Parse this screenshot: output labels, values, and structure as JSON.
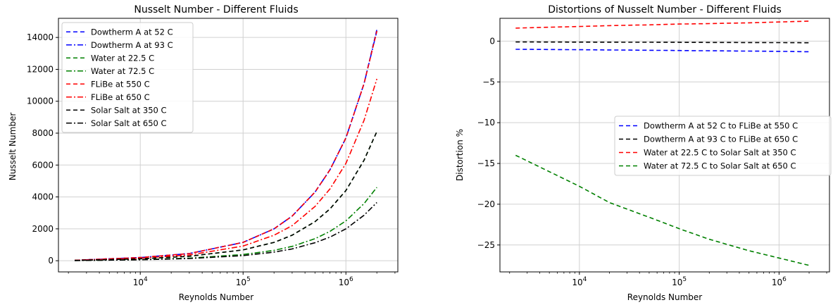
{
  "chart_data": [
    {
      "type": "line",
      "title": "Nusselt Number - Different Fluids",
      "xlabel": "Reynolds Number",
      "ylabel": "Nusselt Number",
      "xscale": "log",
      "xlim": [
        1600,
        3200000
      ],
      "ylim": [
        -700,
        15200
      ],
      "x_ticks": [
        {
          "value": 10000,
          "base": "10",
          "exp": "4"
        },
        {
          "value": 100000,
          "base": "10",
          "exp": "5"
        },
        {
          "value": 1000000,
          "base": "10",
          "exp": "6"
        }
      ],
      "y_ticks": [
        "0",
        "2000",
        "4000",
        "6000",
        "8000",
        "10000",
        "12000",
        "14000"
      ],
      "y_tick_values": [
        0,
        2000,
        4000,
        6000,
        8000,
        10000,
        12000,
        14000
      ],
      "grid": true,
      "legend_position": "upper-left",
      "x": [
        2300,
        10000,
        30000,
        100000,
        200000,
        300000,
        500000,
        700000,
        1000000,
        1500000,
        2000000
      ],
      "series": [
        {
          "name": "Dowtherm A at 52 C",
          "color": "#0000ff",
          "style": "dashed",
          "values": [
            30,
            200,
            450,
            1150,
            2000,
            2800,
            4300,
            5700,
            7700,
            11100,
            14500
          ]
        },
        {
          "name": "Dowtherm A at 93 C",
          "color": "#0000ff",
          "style": "dashdot",
          "values": [
            30,
            200,
            450,
            1150,
            2000,
            2800,
            4300,
            5700,
            7700,
            11100,
            14400
          ]
        },
        {
          "name": "Water at 22.5 C",
          "color": "#008000",
          "style": "dashed",
          "values": [
            20,
            120,
            280,
            680,
            1150,
            1600,
            2450,
            3250,
            4400,
            6300,
            8100
          ]
        },
        {
          "name": "Water at 72.5 C",
          "color": "#008000",
          "style": "dashdot",
          "values": [
            15,
            70,
            160,
            390,
            650,
            900,
            1380,
            1840,
            2500,
            3580,
            4600
          ]
        },
        {
          "name": "FLiBe at 550 C",
          "color": "#ff0000",
          "style": "dashed",
          "values": [
            30,
            200,
            450,
            1150,
            2000,
            2800,
            4300,
            5700,
            7700,
            11100,
            14400
          ]
        },
        {
          "name": "FLiBe at 650 C",
          "color": "#ff0000",
          "style": "dashdot",
          "values": [
            25,
            160,
            360,
            920,
            1600,
            2200,
            3400,
            4500,
            6100,
            8800,
            11400
          ]
        },
        {
          "name": "Solar Salt at 350 C",
          "color": "#000000",
          "style": "dashed",
          "values": [
            20,
            120,
            280,
            680,
            1150,
            1600,
            2450,
            3250,
            4400,
            6300,
            8100
          ]
        },
        {
          "name": "Solar Salt at 650 C",
          "color": "#000000",
          "style": "dashdot",
          "values": [
            12,
            60,
            140,
            320,
            540,
            740,
            1130,
            1480,
            2000,
            2850,
            3650
          ]
        }
      ]
    },
    {
      "type": "line",
      "title": "Distortions of Nusselt Number - Different Fluids",
      "xlabel": "Reynolds Number",
      "ylabel": "Distortion %",
      "xscale": "log",
      "xlim": [
        1600,
        3200000
      ],
      "ylim": [
        -28.3,
        2.8
      ],
      "x_ticks": [
        {
          "value": 10000,
          "base": "10",
          "exp": "4"
        },
        {
          "value": 100000,
          "base": "10",
          "exp": "5"
        },
        {
          "value": 1000000,
          "base": "10",
          "exp": "6"
        }
      ],
      "y_ticks": [
        "0",
        "−5",
        "−10",
        "−15",
        "−20",
        "−25"
      ],
      "y_tick_values": [
        0,
        -5,
        -10,
        -15,
        -20,
        -25
      ],
      "grid": true,
      "legend_position": "center-right",
      "x": [
        2300,
        10000,
        20000,
        50000,
        100000,
        200000,
        500000,
        1000000,
        2000000
      ],
      "series": [
        {
          "name": "Dowtherm A at 52 C to FLiBe at 550 C",
          "color": "#0000ff",
          "style": "dashed",
          "values": [
            -1.0,
            -1.05,
            -1.08,
            -1.12,
            -1.15,
            -1.18,
            -1.22,
            -1.25,
            -1.3
          ]
        },
        {
          "name": "Dowtherm A at 93 C to FLiBe at 650 C",
          "color": "#000000",
          "style": "dashed",
          "values": [
            -0.1,
            -0.12,
            -0.13,
            -0.14,
            -0.15,
            -0.16,
            -0.17,
            -0.18,
            -0.2
          ]
        },
        {
          "name": "Water at 22.5 C to Solar Salt at 350 C",
          "color": "#ff0000",
          "style": "dashed",
          "values": [
            1.6,
            1.8,
            1.9,
            2.0,
            2.1,
            2.15,
            2.25,
            2.35,
            2.45
          ]
        },
        {
          "name": "Water at 72.5 C to Solar Salt at 650 C",
          "color": "#008000",
          "style": "dashed",
          "values": [
            -14.0,
            -17.8,
            -19.8,
            -21.6,
            -23.0,
            -24.3,
            -25.7,
            -26.6,
            -27.5
          ]
        }
      ]
    }
  ]
}
